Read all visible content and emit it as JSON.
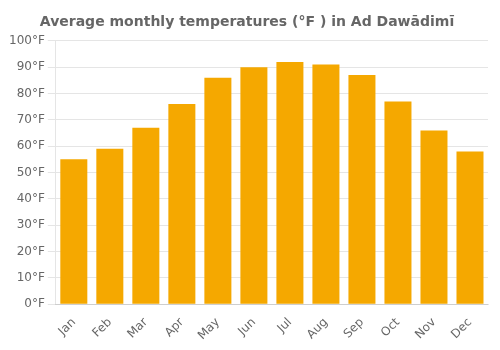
{
  "chart_data": {
    "type": "bar",
    "title": "Average monthly temperatures (°F ) in Ad Dawādimī",
    "categories": [
      "Jan",
      "Feb",
      "Mar",
      "Apr",
      "May",
      "Jun",
      "Jul",
      "Aug",
      "Sep",
      "Oct",
      "Nov",
      "Dec"
    ],
    "values": [
      55,
      59,
      67,
      76,
      86,
      90,
      92,
      91,
      87,
      77,
      66,
      58
    ],
    "color": "#F5A800",
    "ylim": [
      0,
      100
    ],
    "yticks": [
      {
        "value": 0,
        "label": "0°F"
      },
      {
        "value": 10,
        "label": "10°F"
      },
      {
        "value": 20,
        "label": "20°F"
      },
      {
        "value": 30,
        "label": "30°F"
      },
      {
        "value": 40,
        "label": "40°F"
      },
      {
        "value": 50,
        "label": "50°F"
      },
      {
        "value": 60,
        "label": "60°F"
      },
      {
        "value": 70,
        "label": "70°F"
      },
      {
        "value": 80,
        "label": "80°F"
      },
      {
        "value": 90,
        "label": "90°F"
      },
      {
        "value": 100,
        "label": "100°F"
      }
    ],
    "grid": true
  }
}
